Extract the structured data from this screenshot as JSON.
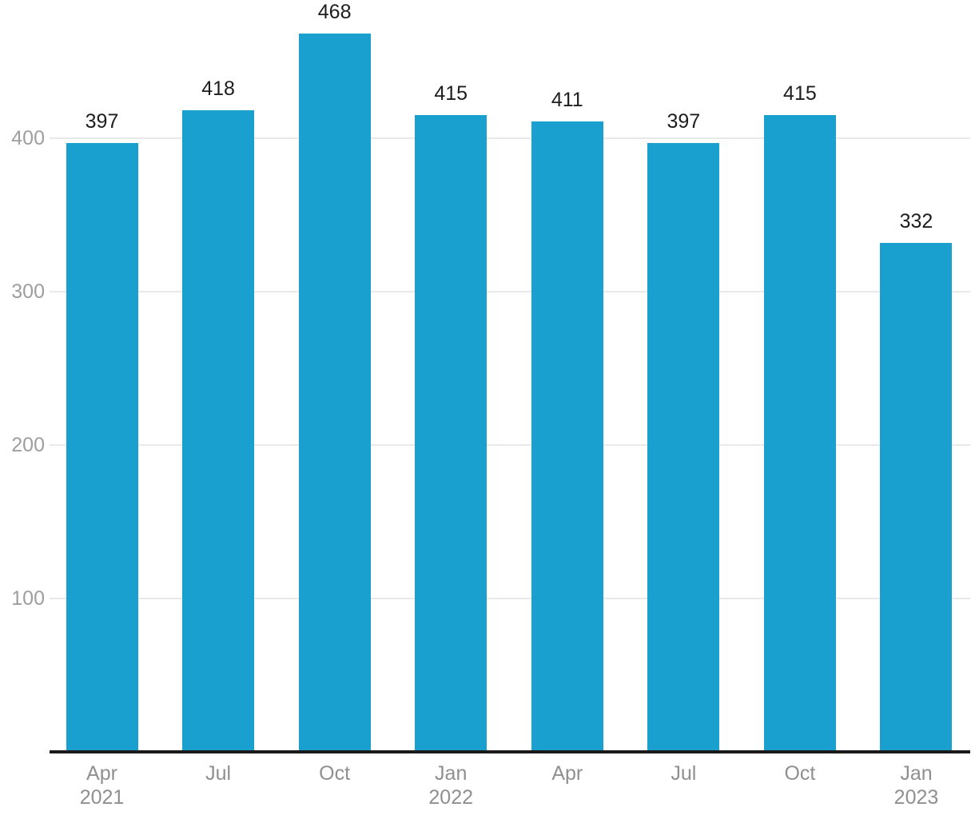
{
  "chart_data": {
    "type": "bar",
    "categories": [
      "Apr\n2021",
      "Jul",
      "Oct",
      "Jan\n2022",
      "Apr",
      "Jul",
      "Oct",
      "Jan\n2023"
    ],
    "values": [
      397,
      418,
      468,
      415,
      411,
      397,
      415,
      332
    ],
    "title": "",
    "xlabel": "",
    "ylabel": "",
    "yticks": [
      100,
      200,
      300,
      400
    ],
    "ylim": [
      0,
      490
    ],
    "grid": true,
    "legend": false,
    "data_labels": [
      397,
      418,
      468,
      415,
      411,
      397,
      415,
      332
    ],
    "colors": {
      "bar": "#1AA0CE",
      "data_label": "#1d1d1d",
      "y_tick_label": "#9e9e9e",
      "x_tick_label": "#8f8f8f",
      "gridline": "#e9e9e9",
      "axis_line": "#1a1a1a",
      "background": "#ffffff"
    }
  }
}
